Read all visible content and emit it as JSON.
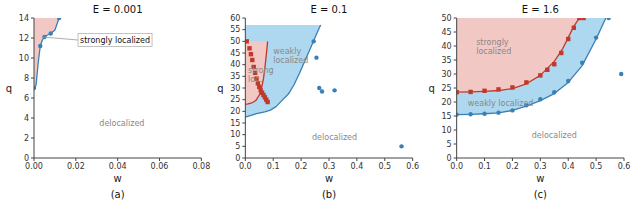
{
  "chart_data": [
    {
      "type": "line",
      "title": "E = 0.001",
      "subtitle": "(a)",
      "x_label": "w",
      "y_label": "q",
      "xlim": [
        0,
        0.08
      ],
      "ylim": [
        0,
        14
      ],
      "xticks": [
        {
          "value": 0,
          "label": "0.00"
        },
        0.02,
        0.04,
        0.06,
        0.08
      ],
      "yticks": [
        0,
        2,
        4,
        6,
        8,
        10,
        12,
        14
      ],
      "grid": false,
      "series": [
        {
          "type": "area",
          "color": "#f2c8c4",
          "x": [
            0.0,
            0.0005,
            0.001,
            0.002,
            0.003,
            0.004,
            0.005,
            0.006,
            0.007,
            0.008,
            0.01,
            0.012
          ],
          "values": [
            7.0,
            7.1,
            7.3,
            9.5,
            11.2,
            11.8,
            12.1,
            12.25,
            12.35,
            12.45,
            12.8,
            14.0
          ]
        },
        {
          "type": "line",
          "color": "#3a7fb5",
          "x": [
            0.0,
            0.0005,
            0.001,
            0.002,
            0.003,
            0.004,
            0.005,
            0.006,
            0.007,
            0.008,
            0.01,
            0.012
          ],
          "values": [
            7.0,
            7.1,
            7.3,
            9.5,
            11.2,
            11.8,
            12.1,
            12.25,
            12.35,
            12.45,
            12.8,
            14.0
          ]
        },
        {
          "type": "scatter",
          "color": "#3a7fb5",
          "marker": "circle",
          "x": [
            0.0,
            0.003,
            0.005,
            0.008,
            0.012
          ],
          "values": [
            7.0,
            11.2,
            12.1,
            12.45,
            14.0
          ]
        }
      ],
      "annotations": [
        {
          "text": "strongly localized",
          "x": 0.022,
          "y": 11.8,
          "point_x": 0.004,
          "point_y": 12.1
        },
        {
          "text": "delocalized",
          "x": 0.042,
          "y": 3.5,
          "color": "#888888"
        }
      ]
    },
    {
      "type": "line",
      "title": "E = 0.1",
      "subtitle": "(b)",
      "x_label": "w",
      "y_label": "q",
      "xlim": [
        0,
        0.6
      ],
      "ylim": [
        0,
        60
      ],
      "xticks": [
        {
          "value": 0,
          "label": "0.0"
        },
        0.1,
        0.2,
        0.3,
        0.4,
        0.5,
        0.6
      ],
      "yticks": [
        0,
        5,
        10,
        15,
        20,
        25,
        30,
        35,
        40,
        45,
        50,
        55,
        60
      ],
      "grid": false,
      "series": [
        {
          "type": "area",
          "color": "#aed8ef",
          "x": [
            0.0,
            0.04,
            0.07,
            0.09,
            0.11,
            0.13,
            0.155,
            0.175,
            0.195,
            0.215,
            0.235,
            0.255,
            0.27
          ],
          "values": [
            17.5,
            19.0,
            19.8,
            20.5,
            22.0,
            24.5,
            27.5,
            31.5,
            36.5,
            42.0,
            47.5,
            53.0,
            57.0
          ]
        },
        {
          "type": "area",
          "color": "#f2c8c4",
          "x": [
            0.0,
            0.01,
            0.02,
            0.03,
            0.04,
            0.05,
            0.055,
            0.06,
            0.065,
            0.07,
            0.075,
            0.08
          ],
          "values": [
            23.0,
            23.2,
            23.5,
            24.0,
            25.0,
            27.0,
            28.5,
            31.0,
            34.0,
            38.5,
            44.0,
            50.0
          ]
        },
        {
          "type": "line",
          "color": "#3a7fb5",
          "x": [
            0.0,
            0.04,
            0.07,
            0.09,
            0.11,
            0.13,
            0.155,
            0.175,
            0.195,
            0.215,
            0.235,
            0.255,
            0.27
          ],
          "values": [
            17.5,
            19.0,
            19.8,
            20.5,
            22.0,
            24.5,
            27.5,
            31.5,
            36.5,
            42.0,
            47.5,
            53.0,
            57.0
          ]
        },
        {
          "type": "line",
          "color": "#c0392b",
          "x": [
            0.0,
            0.01,
            0.02,
            0.03,
            0.04,
            0.05,
            0.055,
            0.06,
            0.065,
            0.07,
            0.075,
            0.08
          ],
          "values": [
            23.0,
            23.2,
            23.5,
            24.0,
            25.0,
            27.0,
            28.5,
            31.0,
            34.0,
            38.5,
            44.0,
            50.0
          ]
        },
        {
          "type": "scatter",
          "color": "#3a7fb5",
          "marker": "circle",
          "x": [
            0.245,
            0.255,
            0.265,
            0.275,
            0.32,
            0.56
          ],
          "values": [
            50.0,
            43.0,
            30.0,
            28.5,
            29.0,
            5.0
          ]
        },
        {
          "type": "scatter",
          "color": "#c0392b",
          "marker": "square",
          "x": [
            0.005,
            0.015,
            0.02,
            0.025,
            0.03,
            0.035,
            0.04,
            0.045,
            0.05,
            0.055,
            0.06,
            0.065,
            0.07,
            0.075,
            0.08
          ],
          "values": [
            50.0,
            47.0,
            44.5,
            42.0,
            39.0,
            36.5,
            34.0,
            32.0,
            30.5,
            29.0,
            28.0,
            27.0,
            26.0,
            25.0,
            24.0
          ]
        }
      ],
      "annotations": [
        {
          "text": "strong\nloc.",
          "x": 0.01,
          "y": 36.0,
          "color": "#888888"
        },
        {
          "text": "weakly\nlocalized",
          "x": 0.1,
          "y": 44.0,
          "color": "#888888"
        },
        {
          "text": "delocalized",
          "x": 0.32,
          "y": 9.0,
          "color": "#888888"
        }
      ]
    },
    {
      "type": "line",
      "title": "E = 1.6",
      "subtitle": "(c)",
      "x_label": "w",
      "y_label": "q",
      "xlim": [
        0,
        0.6
      ],
      "ylim": [
        0,
        50
      ],
      "xticks": [
        {
          "value": 0,
          "label": "0.0"
        },
        0.1,
        0.2,
        0.3,
        0.4,
        0.5,
        0.6
      ],
      "yticks": [
        0,
        5,
        10,
        15,
        20,
        25,
        30,
        35,
        40,
        45,
        50
      ],
      "grid": false,
      "series": [
        {
          "type": "area",
          "color": "#aed8ef",
          "x": [
            0.0,
            0.05,
            0.1,
            0.15,
            0.2,
            0.25,
            0.3,
            0.35,
            0.4,
            0.45,
            0.5,
            0.535
          ],
          "values": [
            15.5,
            15.6,
            15.8,
            16.1,
            17.0,
            18.5,
            20.5,
            23.0,
            27.0,
            33.0,
            42.5,
            50.0
          ]
        },
        {
          "type": "area",
          "color": "#f2c8c4",
          "x": [
            0.0,
            0.05,
            0.1,
            0.15,
            0.2,
            0.25,
            0.3,
            0.35,
            0.38,
            0.4,
            0.42,
            0.44
          ],
          "values": [
            23.5,
            23.6,
            23.8,
            24.1,
            24.8,
            26.5,
            29.5,
            34.5,
            39.0,
            43.0,
            47.0,
            50.0
          ]
        },
        {
          "type": "line",
          "color": "#3a7fb5",
          "x": [
            0.0,
            0.05,
            0.1,
            0.15,
            0.2,
            0.25,
            0.3,
            0.35,
            0.4,
            0.45,
            0.5,
            0.535
          ],
          "values": [
            15.5,
            15.6,
            15.8,
            16.1,
            17.0,
            18.5,
            20.5,
            23.0,
            27.0,
            33.0,
            42.5,
            50.0
          ]
        },
        {
          "type": "line",
          "color": "#c0392b",
          "x": [
            0.0,
            0.05,
            0.1,
            0.15,
            0.2,
            0.25,
            0.3,
            0.35,
            0.38,
            0.4,
            0.42,
            0.44
          ],
          "values": [
            23.5,
            23.6,
            23.8,
            24.1,
            24.8,
            26.5,
            29.5,
            34.5,
            39.0,
            43.0,
            47.0,
            50.0
          ]
        },
        {
          "type": "scatter",
          "color": "#3a7fb5",
          "marker": "circle",
          "x": [
            0.0,
            0.05,
            0.1,
            0.15,
            0.2,
            0.25,
            0.3,
            0.35,
            0.4,
            0.45,
            0.5,
            0.545,
            0.59
          ],
          "values": [
            15.5,
            15.6,
            15.8,
            16.2,
            17.0,
            18.8,
            21.0,
            23.5,
            27.5,
            34.0,
            43.0,
            50.0,
            30.0
          ]
        },
        {
          "type": "scatter",
          "color": "#c0392b",
          "marker": "square",
          "x": [
            0.0,
            0.05,
            0.1,
            0.15,
            0.2,
            0.25,
            0.3,
            0.325,
            0.35,
            0.375,
            0.4,
            0.42,
            0.44,
            0.455
          ],
          "values": [
            23.5,
            23.6,
            24.0,
            24.5,
            25.2,
            27.0,
            29.5,
            31.5,
            33.5,
            37.5,
            42.5,
            46.5,
            50.0,
            50.0
          ]
        }
      ],
      "annotations": [
        {
          "text": "strongly\nlocalized",
          "x": 0.07,
          "y": 40.0,
          "color": "#888888"
        },
        {
          "text": "weakly localized",
          "x": 0.04,
          "y": 19.5,
          "color": "#888888"
        },
        {
          "text": "delocalized",
          "x": 0.35,
          "y": 8.0,
          "color": "#888888"
        }
      ]
    }
  ]
}
